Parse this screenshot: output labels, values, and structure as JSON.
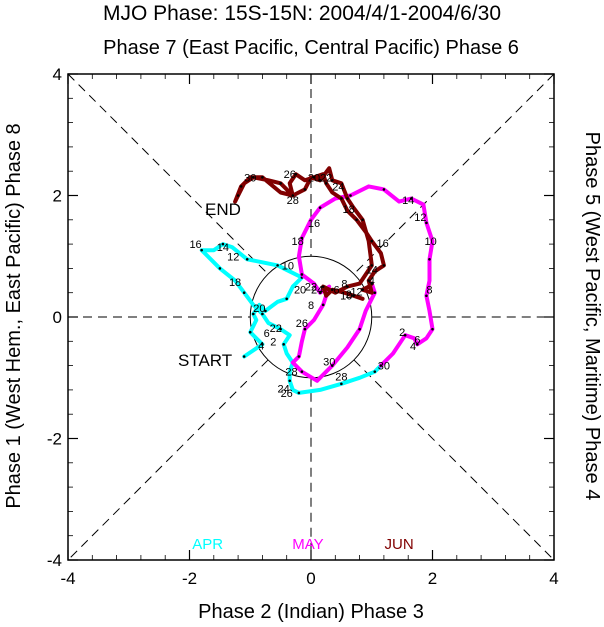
{
  "title": "MJO Phase: 15S-15N: 2004/4/1-2004/6/30",
  "top_label": "Phase 7 (East Pacific, Central Pacific) Phase 6",
  "bottom_label": "Phase 2 (Indian) Phase 3",
  "left_label": "Phase 1 (West Hem., East Pacific) Phase 8",
  "right_label": "Phase 5 (West Pacific, Maritime) Phase 4",
  "start_label": "START",
  "end_label": "END",
  "chart_data": {
    "type": "line",
    "xlim": [
      -4,
      4
    ],
    "ylim": [
      -4,
      4
    ],
    "x_ticks": [
      -4,
      -2,
      0,
      2,
      4
    ],
    "y_ticks": [
      -4,
      -2,
      0,
      2,
      4
    ],
    "x_tick_labels": [
      "-4",
      "-2",
      "0",
      "2",
      "4"
    ],
    "y_tick_labels": [
      "-4",
      "-2",
      "0",
      "2",
      "4"
    ],
    "grid": false,
    "legend_position": "bottom",
    "series": [
      {
        "name": "APR",
        "color": "#00ffff",
        "points": [
          [
            -1.1,
            -0.65
          ],
          [
            -0.95,
            -0.55
          ],
          [
            -0.8,
            -0.45
          ],
          [
            -0.9,
            -0.35
          ],
          [
            -1.0,
            -0.25
          ],
          [
            -0.9,
            -0.05
          ],
          [
            -0.95,
            0.05
          ],
          [
            -0.85,
            0.2
          ],
          [
            -0.75,
            0.1
          ],
          [
            -0.55,
            0.25
          ],
          [
            -0.4,
            0.3
          ],
          [
            -0.3,
            0.5
          ],
          [
            -0.15,
            0.65
          ],
          [
            -0.35,
            0.75
          ],
          [
            -0.55,
            0.85
          ],
          [
            -0.8,
            0.9
          ],
          [
            -1.05,
            0.95
          ],
          [
            -1.3,
            1.15
          ],
          [
            -1.45,
            1.2
          ],
          [
            -1.6,
            1.1
          ],
          [
            -1.8,
            1.1
          ],
          [
            -1.65,
            0.95
          ],
          [
            -1.5,
            0.8
          ],
          [
            -1.25,
            0.6
          ],
          [
            -1.1,
            0.4
          ],
          [
            -0.95,
            0.2
          ],
          [
            -0.8,
            0.05
          ],
          [
            -0.7,
            -0.1
          ],
          [
            -0.5,
            -0.2
          ],
          [
            -0.35,
            -0.3
          ],
          [
            -0.45,
            -0.45
          ],
          [
            -0.4,
            -0.6
          ],
          [
            -0.3,
            -0.75
          ],
          [
            -0.35,
            -0.9
          ],
          [
            -0.35,
            -1.05
          ],
          [
            -0.3,
            -1.2
          ],
          [
            -0.2,
            -1.25
          ],
          [
            0.15,
            -1.2
          ],
          [
            0.5,
            -1.1
          ],
          [
            0.8,
            -1.0
          ],
          [
            1.05,
            -0.9
          ],
          [
            1.15,
            -0.8
          ]
        ],
        "day_labels": [
          {
            "day": 2,
            "x": -0.62,
            "y": -0.4
          },
          {
            "day": 4,
            "x": -0.82,
            "y": -0.47
          },
          {
            "day": 6,
            "x": -0.73,
            "y": -0.26
          },
          {
            "day": 8,
            "x": 0.0,
            "y": 0.2
          },
          {
            "day": 10,
            "x": -0.38,
            "y": 0.85
          },
          {
            "day": 12,
            "x": -1.28,
            "y": 1.0
          },
          {
            "day": 14,
            "x": -1.45,
            "y": 1.15
          },
          {
            "day": 16,
            "x": -1.9,
            "y": 1.2
          },
          {
            "day": 18,
            "x": -1.25,
            "y": 0.58
          },
          {
            "day": 20,
            "x": -0.85,
            "y": 0.15
          },
          {
            "day": 22,
            "x": -0.58,
            "y": -0.18
          },
          {
            "day": 24,
            "x": -0.45,
            "y": -1.18
          },
          {
            "day": 26,
            "x": -0.4,
            "y": -1.25
          },
          {
            "day": 28,
            "x": -0.32,
            "y": -0.9
          },
          {
            "day": 30,
            "x": 1.2,
            "y": -0.8
          }
        ]
      },
      {
        "name": "MAY",
        "color": "#ff00ff",
        "points": [
          [
            1.15,
            -0.8
          ],
          [
            1.35,
            -0.6
          ],
          [
            1.55,
            -0.3
          ],
          [
            1.7,
            -0.35
          ],
          [
            1.75,
            -0.45
          ],
          [
            1.9,
            -0.35
          ],
          [
            2.0,
            -0.2
          ],
          [
            1.95,
            0.1
          ],
          [
            1.9,
            0.35
          ],
          [
            1.95,
            0.6
          ],
          [
            1.95,
            0.95
          ],
          [
            2.0,
            1.25
          ],
          [
            1.9,
            1.55
          ],
          [
            1.85,
            1.85
          ],
          [
            1.65,
            1.95
          ],
          [
            1.45,
            1.9
          ],
          [
            1.2,
            2.1
          ],
          [
            0.95,
            2.15
          ],
          [
            0.65,
            2.0
          ],
          [
            0.4,
            1.95
          ],
          [
            0.15,
            1.8
          ],
          [
            0.0,
            1.6
          ],
          [
            -0.15,
            1.3
          ],
          [
            -0.2,
            1.0
          ],
          [
            -0.15,
            0.7
          ],
          [
            0.05,
            0.55
          ],
          [
            0.15,
            0.4
          ],
          [
            0.3,
            0.5
          ],
          [
            0.2,
            0.2
          ],
          [
            0.05,
            -0.05
          ],
          [
            -0.1,
            -0.2
          ],
          [
            -0.15,
            -0.4
          ],
          [
            -0.2,
            -0.65
          ],
          [
            -0.3,
            -0.75
          ],
          [
            -0.15,
            -0.9
          ],
          [
            0.1,
            -1.05
          ],
          [
            0.35,
            -0.8
          ],
          [
            0.6,
            -0.5
          ],
          [
            0.8,
            -0.2
          ],
          [
            0.9,
            0.1
          ],
          [
            1.05,
            0.4
          ],
          [
            1.0,
            0.55
          ]
        ],
        "day_labels": [
          {
            "day": 2,
            "x": 1.5,
            "y": -0.25
          },
          {
            "day": 4,
            "x": 1.68,
            "y": -0.48
          },
          {
            "day": 6,
            "x": 1.75,
            "y": -0.37
          },
          {
            "day": 8,
            "x": 1.95,
            "y": 0.45
          },
          {
            "day": 10,
            "x": 1.97,
            "y": 1.25
          },
          {
            "day": 12,
            "x": 1.8,
            "y": 1.65
          },
          {
            "day": 14,
            "x": 1.6,
            "y": 1.93
          },
          {
            "day": 16,
            "x": 0.05,
            "y": 1.55
          },
          {
            "day": 18,
            "x": -0.22,
            "y": 1.25
          },
          {
            "day": 20,
            "x": -0.18,
            "y": 0.45
          },
          {
            "day": 22,
            "x": 0.0,
            "y": 0.5
          },
          {
            "day": 24,
            "x": 0.1,
            "y": 0.45
          },
          {
            "day": 26,
            "x": -0.15,
            "y": -0.1
          },
          {
            "day": 28,
            "x": 0.5,
            "y": -0.98
          },
          {
            "day": 30,
            "x": 0.3,
            "y": -0.73
          }
        ]
      },
      {
        "name": "JUN",
        "color": "#800000",
        "points": [
          [
            1.0,
            0.55
          ],
          [
            0.95,
            0.5
          ],
          [
            0.85,
            0.45
          ],
          [
            1.0,
            0.4
          ],
          [
            0.95,
            0.6
          ],
          [
            1.05,
            0.75
          ],
          [
            1.2,
            0.85
          ],
          [
            1.15,
            1.05
          ],
          [
            1.0,
            1.25
          ],
          [
            0.9,
            1.4
          ],
          [
            0.75,
            1.6
          ],
          [
            0.6,
            1.75
          ],
          [
            0.5,
            1.95
          ],
          [
            0.35,
            2.05
          ],
          [
            0.25,
            2.2
          ],
          [
            0.2,
            2.35
          ],
          [
            0.05,
            2.3
          ],
          [
            -0.1,
            2.25
          ],
          [
            -0.25,
            2.35
          ],
          [
            -0.35,
            2.2
          ],
          [
            -0.3,
            2.0
          ],
          [
            -0.5,
            2.05
          ],
          [
            -0.8,
            2.3
          ],
          [
            -1.0,
            2.3
          ],
          [
            -1.15,
            2.15
          ],
          [
            -1.25,
            1.9
          ],
          [
            -1.2,
            2.0
          ],
          [
            -1.1,
            2.2
          ],
          [
            -0.95,
            2.3
          ],
          [
            -0.7,
            2.25
          ],
          [
            -0.5,
            2.2
          ],
          [
            -0.3,
            2.0
          ],
          [
            -0.1,
            2.1
          ],
          [
            0.0,
            2.3
          ],
          [
            0.15,
            2.25
          ],
          [
            0.3,
            2.45
          ],
          [
            0.35,
            2.25
          ],
          [
            0.5,
            2.2
          ],
          [
            0.6,
            1.95
          ],
          [
            0.7,
            1.8
          ],
          [
            0.85,
            1.6
          ],
          [
            0.95,
            1.25
          ],
          [
            1.0,
            0.85
          ],
          [
            0.8,
            0.55
          ],
          [
            0.6,
            0.5
          ],
          [
            0.4,
            0.4
          ],
          [
            0.2,
            0.5
          ],
          [
            0.25,
            0.35
          ],
          [
            0.35,
            0.45
          ],
          [
            0.55,
            0.4
          ],
          [
            0.7,
            0.35
          ],
          [
            0.85,
            0.3
          ]
        ],
        "day_labels": [
          {
            "day": 2,
            "x": 0.62,
            "y": 0.38
          },
          {
            "day": 4,
            "x": 1.0,
            "y": 0.6
          },
          {
            "day": 6,
            "x": 0.42,
            "y": 0.45
          },
          {
            "day": 8,
            "x": 0.55,
            "y": 0.55
          },
          {
            "day": 10,
            "x": 0.58,
            "y": 0.35
          },
          {
            "day": 12,
            "x": 0.75,
            "y": 0.42
          },
          {
            "day": 14,
            "x": 1.0,
            "y": 0.78
          },
          {
            "day": 16,
            "x": 1.18,
            "y": 1.22
          },
          {
            "day": 18,
            "x": 0.62,
            "y": 1.78
          },
          {
            "day": 20,
            "x": 0.05,
            "y": 2.3
          },
          {
            "day": 22,
            "x": 0.25,
            "y": 2.3
          },
          {
            "day": 24,
            "x": 0.45,
            "y": 2.15
          },
          {
            "day": 26,
            "x": -0.35,
            "y": 2.35
          },
          {
            "day": 28,
            "x": -0.3,
            "y": 1.93
          },
          {
            "day": 30,
            "x": -1.0,
            "y": 2.3
          }
        ]
      }
    ]
  }
}
